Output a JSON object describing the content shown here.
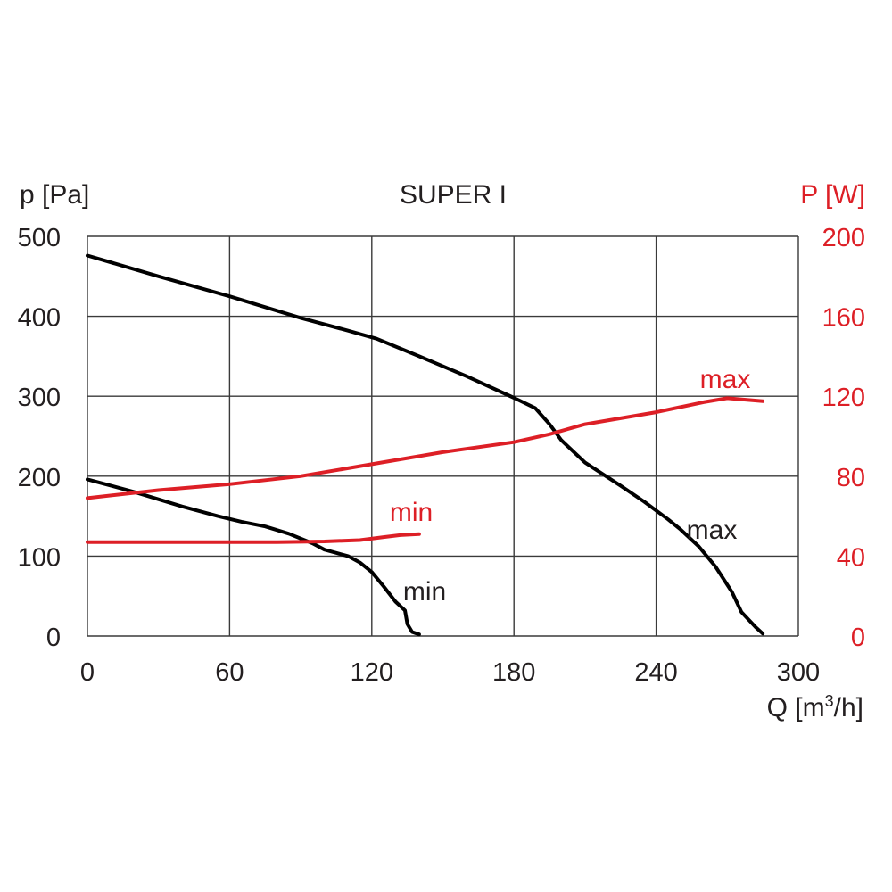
{
  "chart_data": {
    "type": "line",
    "title": "SUPER I",
    "xlabel": "Q [m³/h]",
    "xlabel_main": "Q [m",
    "xlabel_sup": "3",
    "xlabel_tail": "/h]",
    "ylabel": "p [Pa]",
    "y2label": "P [W]",
    "xlim": [
      0,
      300
    ],
    "ylim": [
      0,
      500
    ],
    "y2lim": [
      0,
      200
    ],
    "grid": true,
    "xticks": [
      "0",
      "60",
      "120",
      "180",
      "240",
      "300"
    ],
    "yticks": [
      "0",
      "100",
      "200",
      "300",
      "400",
      "500"
    ],
    "y2ticks": [
      "0",
      "40",
      "80",
      "120",
      "160",
      "200"
    ],
    "series": [
      {
        "name": "max",
        "axis": "left",
        "color": "#000000",
        "points": [
          [
            0,
            476
          ],
          [
            30,
            450
          ],
          [
            60,
            425
          ],
          [
            90,
            398
          ],
          [
            110,
            382
          ],
          [
            122,
            372
          ],
          [
            140,
            350
          ],
          [
            160,
            325
          ],
          [
            180,
            298
          ],
          [
            189,
            285
          ],
          [
            195,
            265
          ],
          [
            200,
            245
          ],
          [
            210,
            217
          ],
          [
            225,
            188
          ],
          [
            235,
            168
          ],
          [
            245,
            146
          ],
          [
            250,
            134
          ],
          [
            258,
            112
          ],
          [
            265,
            87
          ],
          [
            272,
            55
          ],
          [
            276,
            30
          ],
          [
            282,
            11
          ],
          [
            285,
            3
          ]
        ]
      },
      {
        "name": "min",
        "axis": "left",
        "color": "#000000",
        "points": [
          [
            0,
            196
          ],
          [
            20,
            180
          ],
          [
            40,
            162
          ],
          [
            55,
            150
          ],
          [
            65,
            143
          ],
          [
            75,
            137
          ],
          [
            85,
            128
          ],
          [
            95,
            116
          ],
          [
            100,
            108
          ],
          [
            110,
            100
          ],
          [
            115,
            92
          ],
          [
            120,
            80
          ],
          [
            125,
            62
          ],
          [
            130,
            43
          ],
          [
            134,
            32
          ],
          [
            135,
            15
          ],
          [
            137,
            5
          ],
          [
            140,
            2
          ]
        ]
      },
      {
        "name": "max",
        "axis": "right",
        "color": "#dd1f26",
        "points": [
          [
            0,
            69
          ],
          [
            30,
            73
          ],
          [
            60,
            76
          ],
          [
            90,
            80
          ],
          [
            120,
            86
          ],
          [
            150,
            92
          ],
          [
            180,
            97
          ],
          [
            195,
            101
          ],
          [
            210,
            106
          ],
          [
            240,
            112
          ],
          [
            260,
            117
          ],
          [
            270,
            119
          ],
          [
            285,
            117.5
          ]
        ]
      },
      {
        "name": "min",
        "axis": "right",
        "color": "#dd1f26",
        "points": [
          [
            0,
            47
          ],
          [
            40,
            47
          ],
          [
            80,
            47
          ],
          [
            100,
            47.3
          ],
          [
            115,
            48
          ],
          [
            125,
            49.5
          ],
          [
            132,
            50.5
          ],
          [
            140,
            51
          ]
        ]
      }
    ],
    "annotations": [
      {
        "text": "max",
        "color": "#000000"
      },
      {
        "text": "min",
        "color": "#000000"
      },
      {
        "text": "max",
        "color": "#dd1f26"
      },
      {
        "text": "min",
        "color": "#dd1f26"
      }
    ]
  }
}
